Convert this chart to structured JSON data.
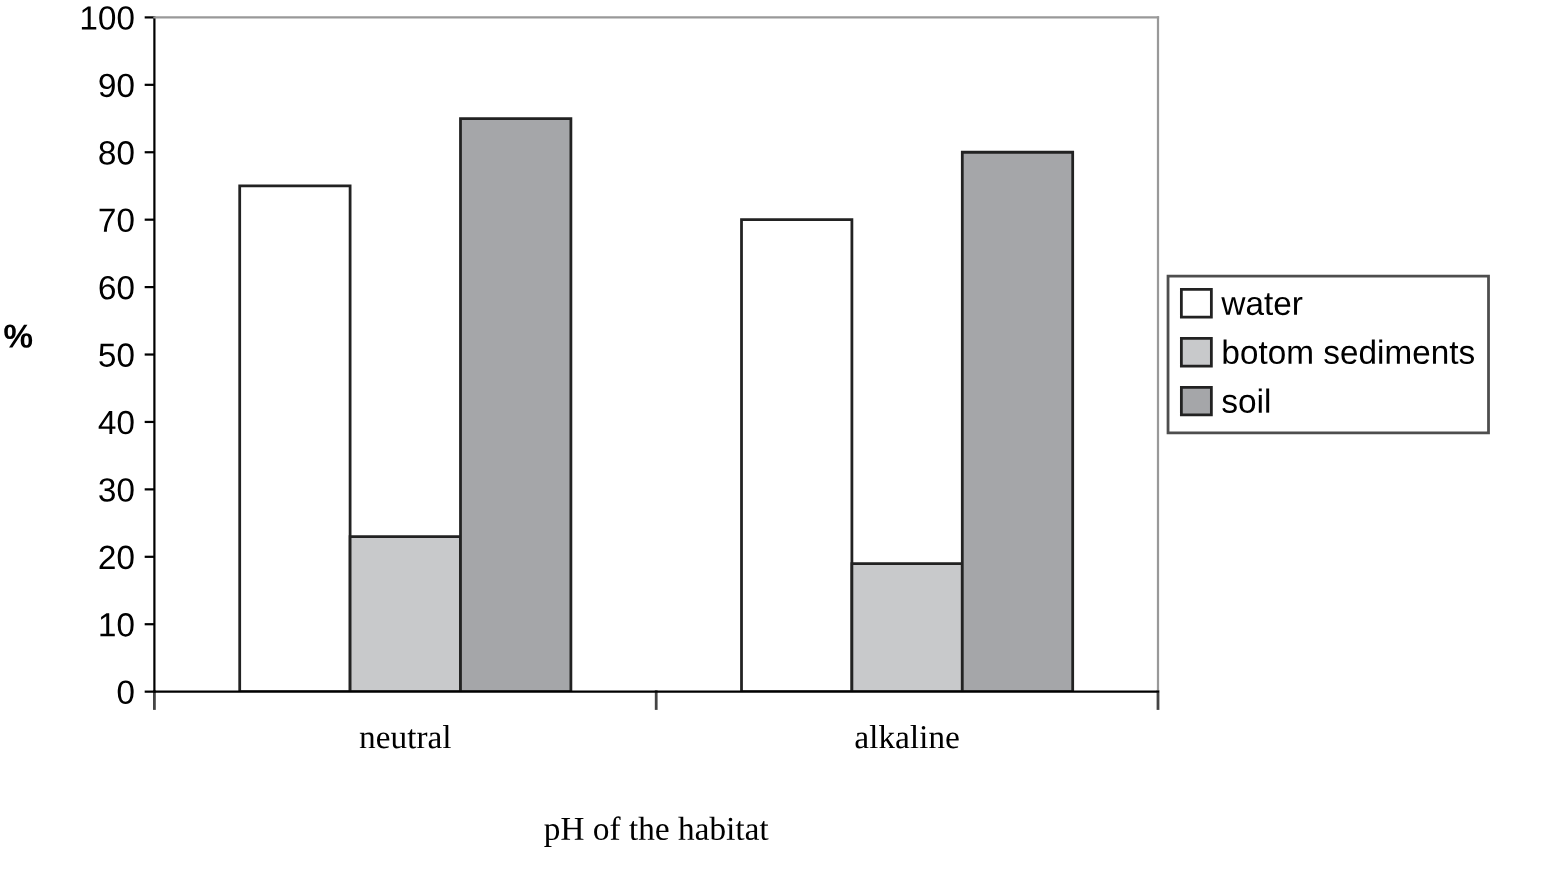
{
  "chart_data": {
    "type": "bar",
    "xlabel": "pH of the habitat",
    "ylabel": "%",
    "categories": [
      "neutral",
      "alkaline"
    ],
    "series": [
      {
        "name": "water",
        "color": "#ffffff",
        "values": [
          75,
          70
        ]
      },
      {
        "name": "botom sediments",
        "color": "#c8c9cb",
        "values": [
          23,
          19
        ]
      },
      {
        "name": "soil",
        "color": "#a5a6a9",
        "values": [
          85,
          80
        ]
      }
    ],
    "ylim": [
      0,
      100
    ],
    "yticks": [
      0,
      10,
      20,
      30,
      40,
      50,
      60,
      70,
      80,
      90,
      100
    ],
    "grid": false,
    "legend": "right"
  }
}
